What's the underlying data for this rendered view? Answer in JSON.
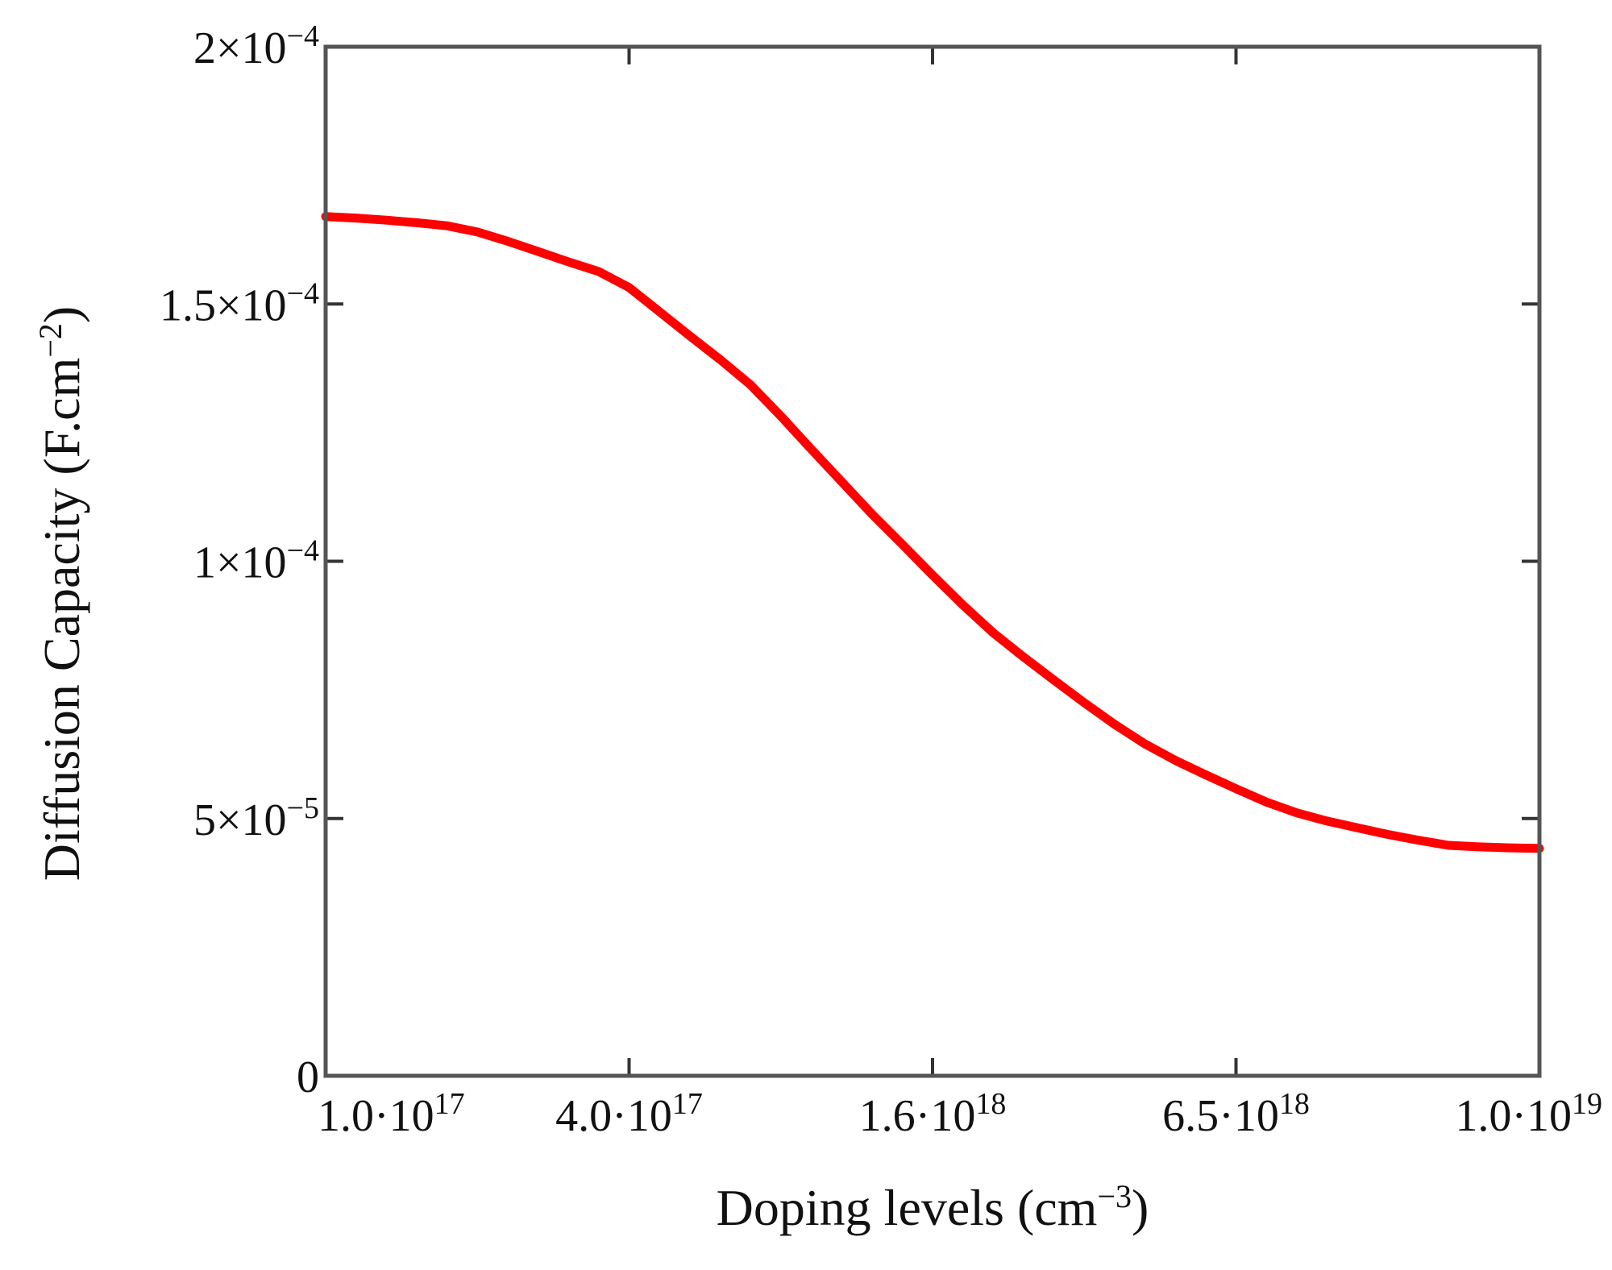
{
  "chart_data": {
    "type": "line",
    "title": "",
    "xlabel": {
      "base": "Doping levels (cm",
      "sup": "−3",
      "tail": ")"
    },
    "ylabel": {
      "base": "Diffusion Capacity (F.cm",
      "sup": "−2",
      "tail": ")"
    },
    "x_ticks": [
      {
        "value": 0,
        "base": "1.0·10",
        "sup": "17"
      },
      {
        "value": 1,
        "base": "4.0·10",
        "sup": "17"
      },
      {
        "value": 2,
        "base": "1.6·10",
        "sup": "18"
      },
      {
        "value": 3,
        "base": "6.5·10",
        "sup": "18"
      },
      {
        "value": 4,
        "base": "1.0·10",
        "sup": "19"
      }
    ],
    "y_ticks": [
      {
        "value": 0,
        "base": "0",
        "sup": ""
      },
      {
        "value": 5e-05,
        "base": "5×10",
        "sup": "−5"
      },
      {
        "value": 0.0001,
        "base": "1×10",
        "sup": "−4"
      },
      {
        "value": 0.00015,
        "base": "1.5×10",
        "sup": "−4"
      },
      {
        "value": 0.0002,
        "base": "2×10",
        "sup": "−4"
      }
    ],
    "xlim": [
      0,
      4
    ],
    "ylim": [
      0,
      0.0002
    ],
    "series": [
      {
        "color": "#ff0000",
        "x": [
          0,
          0.1,
          0.2,
          0.3,
          0.4,
          0.5,
          0.6,
          0.7,
          0.8,
          0.9,
          1.0,
          1.1,
          1.2,
          1.3,
          1.4,
          1.5,
          1.6,
          1.7,
          1.8,
          1.9,
          2.0,
          2.1,
          2.2,
          2.3,
          2.4,
          2.5,
          2.6,
          2.7,
          2.8,
          2.9,
          3.0,
          3.1,
          3.2,
          3.3,
          3.4,
          3.5,
          3.6,
          3.7,
          3.8,
          3.9,
          4.0
        ],
        "y": [
          0.000167,
          0.0001667,
          0.0001663,
          0.0001658,
          0.0001652,
          0.000164,
          0.0001622,
          0.0001602,
          0.0001582,
          0.0001563,
          0.0001532,
          0.0001485,
          0.0001438,
          0.0001392,
          0.0001343,
          0.0001282,
          0.0001218,
          0.0001155,
          0.0001092,
          0.0001033,
          9.73e-05,
          9.15e-05,
          8.61e-05,
          8.14e-05,
          7.69e-05,
          7.25e-05,
          6.83e-05,
          6.45e-05,
          6.13e-05,
          5.85e-05,
          5.58e-05,
          5.32e-05,
          5.11e-05,
          4.95e-05,
          4.82e-05,
          4.69e-05,
          4.58e-05,
          4.48e-05,
          4.45e-05,
          4.43e-05,
          4.42e-05
        ]
      }
    ],
    "grid": false,
    "legend": "none"
  }
}
